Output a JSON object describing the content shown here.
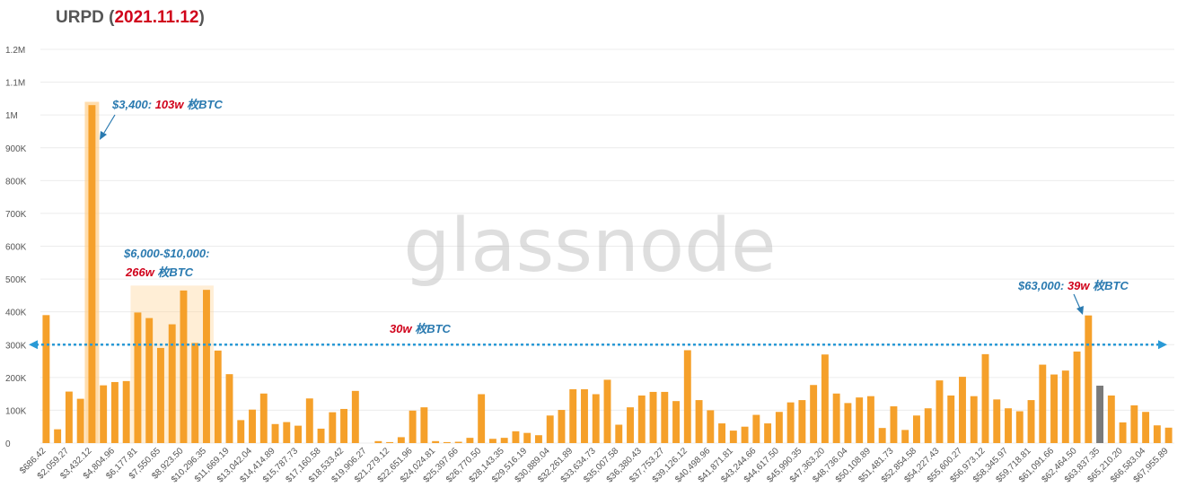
{
  "header": {
    "title_main": "URPD",
    "title_paren_open": " (",
    "title_date": "2021.11.12",
    "title_paren_close": ")"
  },
  "watermark": "glassnode",
  "colors": {
    "bar": "#f5a02a",
    "bar_current": "#7a7a7a",
    "highlight": "#ffcf8a",
    "annotation_blue": "#2a7ab0",
    "annotation_red": "#d0021b",
    "reference_line": "#2a9ad6"
  },
  "chart_data": {
    "type": "bar",
    "ylim": [
      0,
      1200000
    ],
    "y_ticks": [
      {
        "v": 0,
        "label": "0"
      },
      {
        "v": 100000,
        "label": "100K"
      },
      {
        "v": 200000,
        "label": "200K"
      },
      {
        "v": 300000,
        "label": "300K"
      },
      {
        "v": 400000,
        "label": "400K"
      },
      {
        "v": 500000,
        "label": "500K"
      },
      {
        "v": 600000,
        "label": "600K"
      },
      {
        "v": 700000,
        "label": "700K"
      },
      {
        "v": 800000,
        "label": "800K"
      },
      {
        "v": 900000,
        "label": "900K"
      },
      {
        "v": 1000000,
        "label": "1M"
      },
      {
        "v": 1100000,
        "label": "1.1M"
      },
      {
        "v": 1200000,
        "label": "1.2M"
      }
    ],
    "x_tick_labels": [
      "$686.42",
      "$2,059.27",
      "$3,432.12",
      "$4,804.96",
      "$6,177.81",
      "$7,550.65",
      "$8,923.50",
      "$10,296.35",
      "$11,669.19",
      "$13,042.04",
      "$14,414.89",
      "$15,787.73",
      "$17,160.58",
      "$18,533.42",
      "$19,906.27",
      "$21,279.12",
      "$22,651.96",
      "$24,024.81",
      "$25,397.66",
      "$26,770.50",
      "$28,143.35",
      "$29,516.19",
      "$30,889.04",
      "$32,261.89",
      "$33,634.73",
      "$35,007.58",
      "$36,380.43",
      "$37,753.27",
      "$39,126.12",
      "$40,498.96",
      "$41,871.81",
      "$43,244.66",
      "$44,617.50",
      "$45,990.35",
      "$47,363.20",
      "$48,736.04",
      "$50,108.89",
      "$51,481.73",
      "$52,854.58",
      "$54,227.43",
      "$55,600.27",
      "$56,973.12",
      "$58,345.97",
      "$59,718.81",
      "$61,091.66",
      "$62,464.50",
      "$63,837.35",
      "$65,210.20",
      "$66,583.04",
      "$67,955.89"
    ],
    "values": [
      390000,
      42000,
      157000,
      135000,
      1030000,
      176000,
      186000,
      189000,
      398000,
      381000,
      290000,
      362000,
      465000,
      305000,
      467000,
      282000,
      210000,
      70000,
      102000,
      151000,
      58000,
      64000,
      53000,
      136000,
      44000,
      94000,
      104000,
      159000,
      0,
      6000,
      3000,
      18000,
      99000,
      109000,
      6000,
      3000,
      4000,
      16000,
      149000,
      13000,
      16000,
      36000,
      31000,
      24000,
      84000,
      101000,
      164000,
      164000,
      149000,
      193000,
      56000,
      109000,
      145000,
      156000,
      156000,
      128000,
      283000,
      131000,
      100000,
      60000,
      38000,
      50000,
      86000,
      60000,
      95000,
      124000,
      131000,
      177000,
      270000,
      151000,
      122000,
      139000,
      143000,
      46000,
      112000,
      40000,
      84000,
      106000,
      191000,
      145000,
      202000,
      143000,
      271000,
      133000,
      106000,
      97000,
      131000,
      239000,
      209000,
      221000,
      279000,
      389000,
      175000,
      145000,
      63000,
      115000,
      95000,
      54000,
      47000
    ],
    "current_price_bar_index": 92,
    "highlighted_bar_index": 4,
    "highlighted_range": [
      8,
      14
    ],
    "reference_line_value": 300000,
    "annotations": {
      "a1_price": "$3,400: ",
      "a1_amount": "103w",
      "a1_unit": " 枚BTC",
      "a2_range": "$6,000-$10,000:",
      "a2_amount": "266w",
      "a2_unit": " 枚BTC",
      "a3_amount": "30w",
      "a3_unit": " 枚BTC",
      "a4_price": "$63,000: ",
      "a4_amount": "39w",
      "a4_unit": " 枚BTC"
    }
  }
}
